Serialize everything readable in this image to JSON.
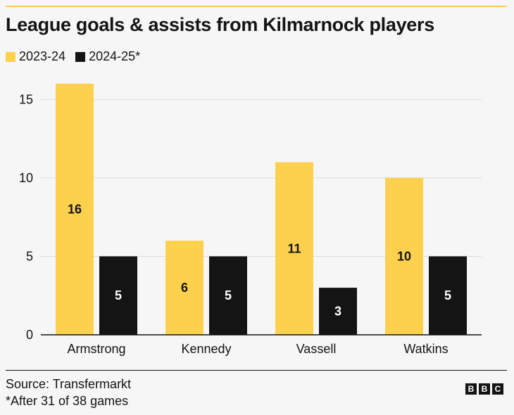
{
  "header": {
    "title": "League goals & assists from Kilmarnock players"
  },
  "chart_data": {
    "type": "bar",
    "title": "League goals & assists from Kilmarnock players",
    "categories": [
      "Armstrong",
      "Kennedy",
      "Vassell",
      "Watkins"
    ],
    "series": [
      {
        "name": "2023-24",
        "values": [
          16,
          6,
          11,
          10
        ],
        "color": "#fdd14d",
        "label_color": "#141414"
      },
      {
        "name": "2024-25*",
        "values": [
          5,
          5,
          3,
          5
        ],
        "color": "#141414",
        "label_color": "#ffffff"
      }
    ],
    "ylim": [
      0,
      16
    ],
    "yticks": [
      0,
      5,
      10,
      15
    ],
    "grid": true,
    "legend": "top-left",
    "xlabel": "",
    "ylabel": ""
  },
  "footer": {
    "source": "Source: Transfermarkt",
    "note": "*After 31 of 38 games",
    "logo_letters": [
      "B",
      "B",
      "C"
    ]
  }
}
